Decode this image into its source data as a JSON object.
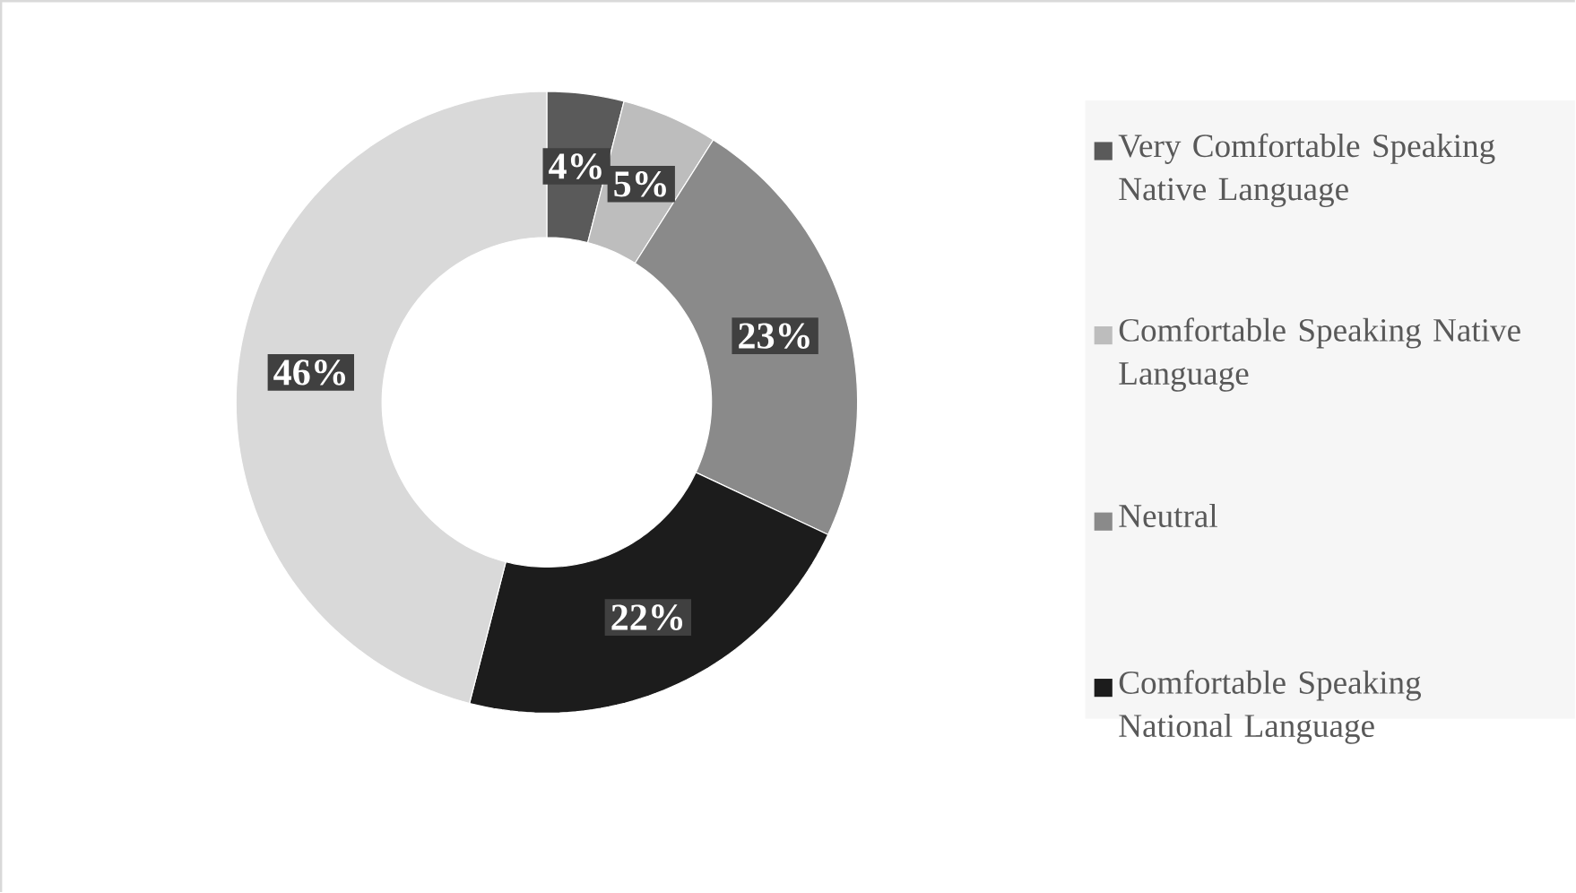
{
  "chart_data": {
    "type": "donut",
    "categories": [
      "Very Comfortable Speaking Native Language",
      "Comfortable Speaking Native Language",
      "Neutral",
      "Comfortable Speaking National Language",
      null
    ],
    "values": [
      4,
      5,
      23,
      22,
      46
    ],
    "colors": [
      "#5a5a5a",
      "#bdbdbd",
      "#8a8a8a",
      "#1c1c1c",
      "#d9d9d9"
    ],
    "value_labels": [
      "4%",
      "5%",
      "23%",
      "22%",
      "46%"
    ],
    "legend": "right"
  }
}
